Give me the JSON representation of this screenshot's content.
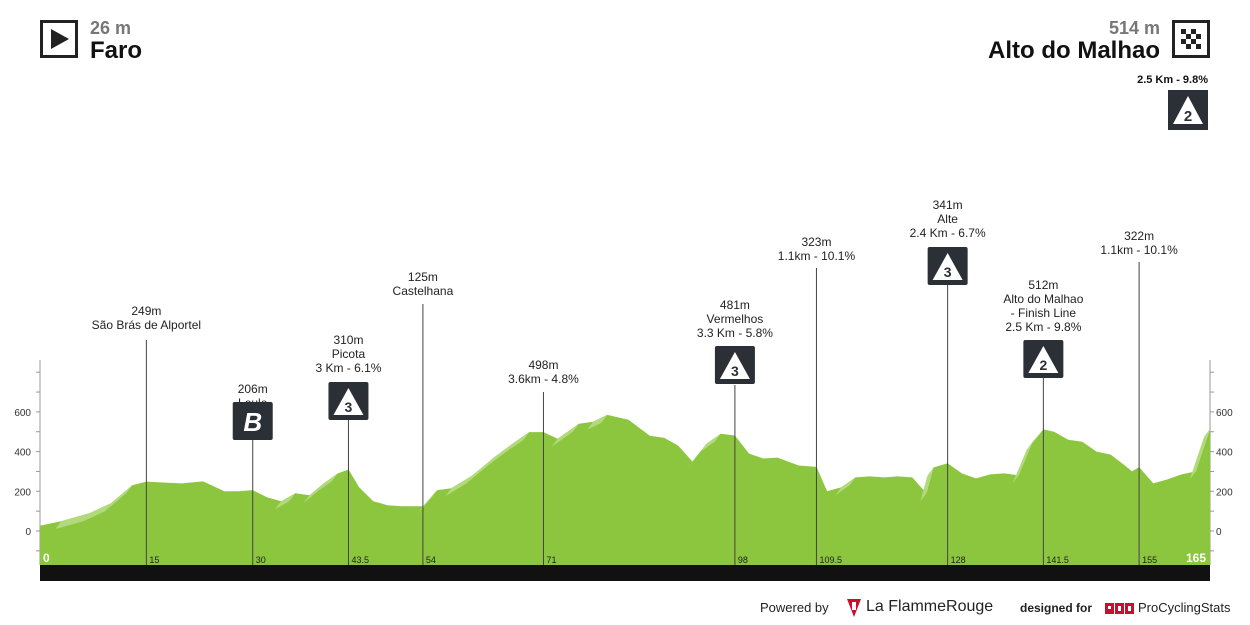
{
  "header": {
    "start_elevation": "26 m",
    "start_name": "Faro",
    "finish_elevation": "514 m",
    "finish_name": "Alto do Malhao",
    "finish_climb_label": "2.5 Km - 9.8%",
    "finish_climb_category": "2"
  },
  "footer": {
    "powered_by": "Powered by",
    "brand": "La FlammeRouge",
    "designed_for": "designed for",
    "pcs_brand": "ProCyclingStats"
  },
  "colors": {
    "profile_fill": "#8cc63f",
    "profile_highlight": "#b2d97c",
    "axis_bar": "#111111",
    "badge_bg": "#2b2f36"
  },
  "chart_data": {
    "type": "area",
    "title": "",
    "xlabel": "",
    "ylabel": "",
    "xlim": [
      0,
      165
    ],
    "ylim": [
      -100,
      800
    ],
    "y_ticks": [
      0,
      200,
      400,
      600
    ],
    "x_ticks": [
      "0",
      "15",
      "30",
      "43.5",
      "54",
      "71",
      "98",
      "109.5",
      "128",
      "141.5",
      "155",
      "165"
    ],
    "x_tick_values": [
      0,
      15,
      30,
      43.5,
      54,
      71,
      98,
      109.5,
      128,
      141.5,
      155,
      165
    ],
    "profile": {
      "x": [
        0,
        3,
        7,
        10,
        13,
        15,
        17,
        20,
        23,
        26,
        28,
        30,
        32,
        34,
        36,
        38,
        40,
        42,
        43.5,
        45,
        47,
        49,
        51,
        54,
        56,
        58,
        61,
        64,
        67,
        69,
        71,
        73,
        76,
        78,
        80,
        83,
        86,
        88,
        90,
        92,
        94,
        96,
        98,
        100,
        102,
        104,
        107,
        109.5,
        111,
        113,
        115,
        117,
        119,
        121,
        123,
        125,
        126,
        128,
        130,
        132,
        134,
        136,
        138,
        140,
        141.5,
        143,
        145,
        147,
        149,
        151,
        153,
        154,
        155,
        157,
        159,
        161,
        163,
        165
      ],
      "y": [
        26,
        50,
        90,
        140,
        230,
        249,
        245,
        240,
        250,
        200,
        200,
        206,
        170,
        150,
        190,
        180,
        240,
        290,
        310,
        220,
        150,
        130,
        125,
        125,
        205,
        215,
        280,
        370,
        450,
        498,
        498,
        465,
        540,
        550,
        585,
        560,
        480,
        470,
        430,
        350,
        440,
        490,
        481,
        390,
        365,
        370,
        330,
        323,
        200,
        220,
        270,
        275,
        270,
        275,
        270,
        190,
        320,
        341,
        290,
        265,
        285,
        290,
        280,
        450,
        512,
        500,
        460,
        450,
        400,
        385,
        330,
        300,
        322,
        240,
        260,
        285,
        300,
        514
      ]
    },
    "points": [
      {
        "km": 15,
        "elev": 249,
        "labels": [
          "249m",
          "São Brás de Alportel"
        ],
        "badge": ""
      },
      {
        "km": 30,
        "elev": 206,
        "labels": [
          "206m",
          "Loule"
        ],
        "badge": "B"
      },
      {
        "km": 43.5,
        "elev": 310,
        "labels": [
          "310m",
          "Picota",
          "3 Km - 6.1%"
        ],
        "badge": "3"
      },
      {
        "km": 54,
        "elev": 125,
        "labels": [
          "125m",
          "Castelhana"
        ],
        "badge": ""
      },
      {
        "km": 71,
        "elev": 498,
        "labels": [
          "498m",
          "3.6km - 4.8%"
        ],
        "badge": ""
      },
      {
        "km": 98,
        "elev": 481,
        "labels": [
          "481m",
          "Vermelhos",
          "3.3 Km - 5.8%"
        ],
        "badge": "3"
      },
      {
        "km": 109.5,
        "elev": 323,
        "labels": [
          "323m",
          "1.1km - 10.1%"
        ],
        "badge": ""
      },
      {
        "km": 128,
        "elev": 341,
        "labels": [
          "341m",
          "Alte",
          "2.4 Km - 6.7%"
        ],
        "badge": "3"
      },
      {
        "km": 141.5,
        "elev": 512,
        "labels": [
          "512m",
          "Alto do Malhao",
          "- Finish Line",
          "2.5 Km - 9.8%"
        ],
        "badge": "2"
      },
      {
        "km": 155,
        "elev": 322,
        "labels": [
          "322m",
          "1.1km - 10.1%"
        ],
        "badge": ""
      }
    ]
  }
}
